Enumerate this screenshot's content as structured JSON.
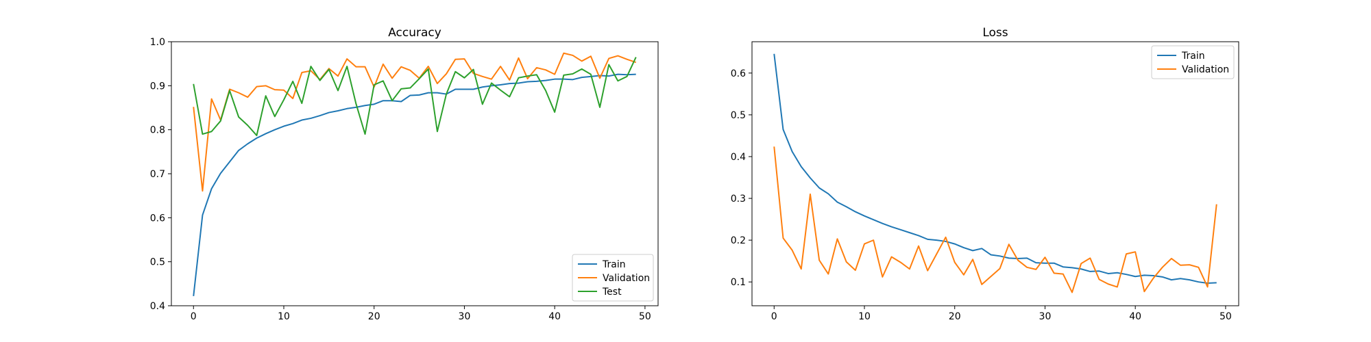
{
  "chart_data": [
    {
      "type": "line",
      "title": "Accuracy",
      "xlabel": "",
      "ylabel": "",
      "xlim": [
        -2.45,
        51.45
      ],
      "ylim": [
        0.4,
        1.0
      ],
      "xticks": [
        0,
        10,
        20,
        30,
        40,
        50
      ],
      "yticks": [
        0.4,
        0.5,
        0.6,
        0.7,
        0.8,
        0.9,
        1.0
      ],
      "xtick_labels": [
        "0",
        "10",
        "20",
        "30",
        "40",
        "50"
      ],
      "ytick_labels": [
        "0.4",
        "0.5",
        "0.6",
        "0.7",
        "0.8",
        "0.9",
        "1.0"
      ],
      "grid": false,
      "legend_position": "lower-right",
      "x": [
        0,
        1,
        2,
        3,
        4,
        5,
        6,
        7,
        8,
        9,
        10,
        11,
        12,
        13,
        14,
        15,
        16,
        17,
        18,
        19,
        20,
        21,
        22,
        23,
        24,
        25,
        26,
        27,
        28,
        29,
        30,
        31,
        32,
        33,
        34,
        35,
        36,
        37,
        38,
        39,
        40,
        41,
        42,
        43,
        44,
        45,
        46,
        47,
        48,
        49
      ],
      "series": [
        {
          "name": "Train",
          "color": "#1f77b4",
          "values": [
            0.422,
            0.606,
            0.666,
            0.701,
            0.727,
            0.753,
            0.768,
            0.781,
            0.791,
            0.8,
            0.808,
            0.814,
            0.822,
            0.826,
            0.832,
            0.839,
            0.843,
            0.848,
            0.851,
            0.855,
            0.858,
            0.866,
            0.866,
            0.864,
            0.878,
            0.879,
            0.884,
            0.884,
            0.881,
            0.892,
            0.892,
            0.892,
            0.897,
            0.9,
            0.902,
            0.905,
            0.906,
            0.909,
            0.91,
            0.912,
            0.915,
            0.915,
            0.914,
            0.919,
            0.921,
            0.923,
            0.922,
            0.926,
            0.925,
            0.926
          ]
        },
        {
          "name": "Validation",
          "color": "#ff7f0e",
          "values": [
            0.852,
            0.661,
            0.87,
            0.822,
            0.892,
            0.884,
            0.874,
            0.898,
            0.9,
            0.891,
            0.89,
            0.871,
            0.93,
            0.934,
            0.914,
            0.939,
            0.922,
            0.961,
            0.943,
            0.943,
            0.897,
            0.949,
            0.917,
            0.943,
            0.935,
            0.917,
            0.944,
            0.905,
            0.927,
            0.96,
            0.961,
            0.928,
            0.921,
            0.915,
            0.944,
            0.913,
            0.963,
            0.916,
            0.941,
            0.936,
            0.926,
            0.974,
            0.969,
            0.956,
            0.967,
            0.917,
            0.962,
            0.968,
            0.96,
            0.953
          ]
        },
        {
          "name": "Test",
          "color": "#2ca02c",
          "values": [
            0.904,
            0.79,
            0.796,
            0.82,
            0.889,
            0.829,
            0.81,
            0.787,
            0.877,
            0.83,
            0.868,
            0.91,
            0.86,
            0.944,
            0.912,
            0.937,
            0.889,
            0.944,
            0.859,
            0.79,
            0.902,
            0.911,
            0.866,
            0.893,
            0.895,
            0.916,
            0.938,
            0.796,
            0.881,
            0.932,
            0.918,
            0.937,
            0.858,
            0.906,
            0.89,
            0.875,
            0.918,
            0.922,
            0.925,
            0.889,
            0.84,
            0.924,
            0.927,
            0.938,
            0.926,
            0.851,
            0.948,
            0.911,
            0.921,
            0.965
          ]
        }
      ]
    },
    {
      "type": "line",
      "title": "Loss",
      "xlabel": "",
      "ylabel": "",
      "xlim": [
        -2.45,
        51.45
      ],
      "ylim": [
        0.043,
        0.675
      ],
      "xticks": [
        0,
        10,
        20,
        30,
        40,
        50
      ],
      "yticks": [
        0.1,
        0.2,
        0.3,
        0.4,
        0.5,
        0.6
      ],
      "xtick_labels": [
        "0",
        "10",
        "20",
        "30",
        "40",
        "50"
      ],
      "ytick_labels": [
        "0.1",
        "0.2",
        "0.3",
        "0.4",
        "0.5",
        "0.6"
      ],
      "grid": false,
      "legend_position": "upper-right",
      "x": [
        0,
        1,
        2,
        3,
        4,
        5,
        6,
        7,
        8,
        9,
        10,
        11,
        12,
        13,
        14,
        15,
        16,
        17,
        18,
        19,
        20,
        21,
        22,
        23,
        24,
        25,
        26,
        27,
        28,
        29,
        30,
        31,
        32,
        33,
        34,
        35,
        36,
        37,
        38,
        39,
        40,
        41,
        42,
        43,
        44,
        45,
        46,
        47,
        48,
        49
      ],
      "series": [
        {
          "name": "Train",
          "color": "#1f77b4",
          "values": [
            0.646,
            0.465,
            0.412,
            0.376,
            0.349,
            0.325,
            0.311,
            0.291,
            0.28,
            0.268,
            0.258,
            0.249,
            0.24,
            0.232,
            0.225,
            0.218,
            0.211,
            0.202,
            0.2,
            0.197,
            0.191,
            0.182,
            0.175,
            0.18,
            0.165,
            0.162,
            0.157,
            0.156,
            0.157,
            0.146,
            0.145,
            0.145,
            0.136,
            0.134,
            0.131,
            0.125,
            0.126,
            0.12,
            0.122,
            0.118,
            0.113,
            0.116,
            0.115,
            0.112,
            0.105,
            0.108,
            0.105,
            0.1,
            0.097,
            0.098
          ]
        },
        {
          "name": "Validation",
          "color": "#ff7f0e",
          "values": [
            0.424,
            0.205,
            0.176,
            0.131,
            0.31,
            0.152,
            0.119,
            0.203,
            0.148,
            0.128,
            0.191,
            0.2,
            0.112,
            0.16,
            0.147,
            0.131,
            0.186,
            0.127,
            0.167,
            0.207,
            0.147,
            0.117,
            0.154,
            0.094,
            0.113,
            0.132,
            0.19,
            0.152,
            0.135,
            0.13,
            0.159,
            0.121,
            0.119,
            0.075,
            0.144,
            0.157,
            0.106,
            0.095,
            0.088,
            0.167,
            0.172,
            0.077,
            0.109,
            0.135,
            0.156,
            0.14,
            0.141,
            0.135,
            0.088,
            0.286
          ]
        }
      ]
    }
  ]
}
